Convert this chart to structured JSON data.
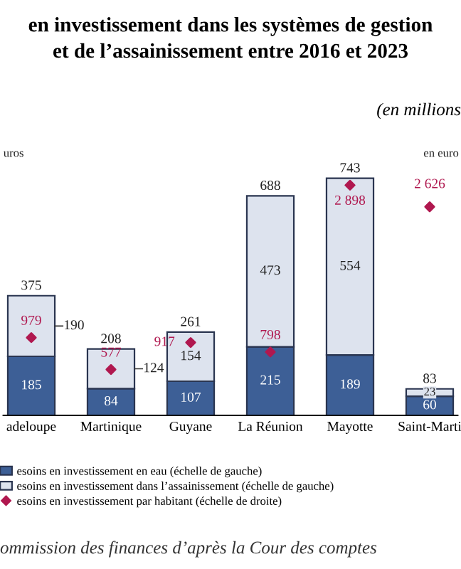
{
  "chart_data": {
    "type": "bar",
    "title": "en investissement dans les systèmes de gestion\net de l’assainissement entre 2016 et 2023",
    "subtitle": "(en millions",
    "ylabel": "uros",
    "y2label": "en euro",
    "categories": [
      "adeloupe",
      "Martinique",
      "Guyane",
      "La Réunion",
      "Mayotte",
      "Saint-Marti"
    ],
    "stacked": true,
    "series": [
      {
        "name": "esoins en investissement en eau (échelle de gauche)",
        "color": "#3d5f96",
        "values": [
          185,
          84,
          107,
          215,
          189,
          60
        ]
      },
      {
        "name": "esoins en investissement dans l’assainissement (échelle de gauche)",
        "color": "#dde3ee",
        "values": [
          190,
          124,
          154,
          473,
          554,
          23
        ]
      },
      {
        "name": "esoins en investissement par habitant (échelle de droite)",
        "type": "scatter",
        "axis": "y2",
        "color": "#b0184f",
        "values": [
          979,
          577,
          917,
          798,
          2898,
          2626
        ],
        "value_labels": [
          "979",
          "577",
          "917",
          "798",
          "2 898",
          "2 626"
        ]
      }
    ],
    "totals": [
      "375",
      "208",
      "261",
      "688",
      "743",
      "83"
    ],
    "data_labels": true,
    "legend": "bottom left",
    "marker": "diamond",
    "annotations": [
      "ommission des finances d’après la Cour des comptes"
    ]
  }
}
